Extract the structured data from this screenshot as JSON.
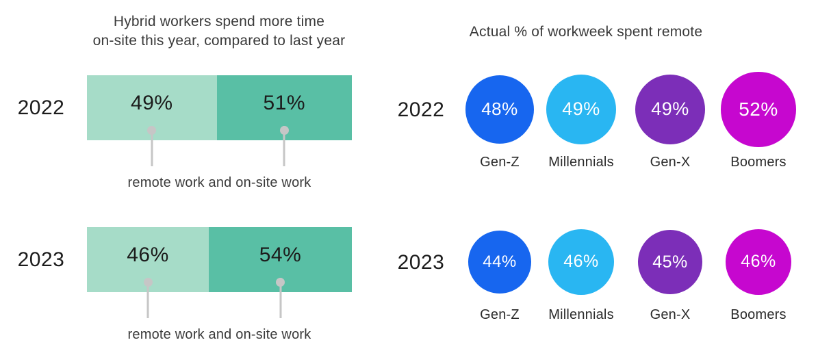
{
  "colors": {
    "remote_segment": "#a6dcc8",
    "onsite_segment": "#59bfa5",
    "pin_gray": "#c6c6c6",
    "text_dark": "#1c1c1c",
    "text_gray": "#3a3a3a",
    "bubble_genz": "#1766ef",
    "bubble_millennials": "#29b6f2",
    "bubble_genx": "#7c2eb8",
    "bubble_boomers": "#c607cf"
  },
  "chart_data": [
    {
      "type": "bar",
      "subtype": "horizontal-stacked-100pct",
      "title_lines": [
        "Hybrid workers spend more time",
        "on-site this year, compared to last year"
      ],
      "title": "Hybrid workers spend more time on-site this year, compared to last year",
      "categories": [
        "2022",
        "2023"
      ],
      "series": [
        {
          "name": "remote work",
          "values": [
            49,
            46
          ],
          "labels": [
            "49%",
            "46%"
          ],
          "color": "#a6dcc8"
        },
        {
          "name": "on-site work",
          "values": [
            51,
            54
          ],
          "labels": [
            "51%",
            "54%"
          ],
          "color": "#59bfa5"
        }
      ],
      "annotation": "remote work and on-site work",
      "value_suffix": "%",
      "xlim": [
        0,
        100
      ],
      "grid": false,
      "legend": "pin-callouts-below-each-bar"
    },
    {
      "type": "bubble",
      "title": "Actual % of workweek spent remote",
      "categories": [
        "Gen-Z",
        "Millennials",
        "Gen-X",
        "Boomers"
      ],
      "category_colors": [
        "#1766ef",
        "#29b6f2",
        "#7c2eb8",
        "#c607cf"
      ],
      "series": [
        {
          "name": "2022",
          "values": [
            48,
            49,
            49,
            52
          ],
          "labels": [
            "48%",
            "49%",
            "49%",
            "52%"
          ]
        },
        {
          "name": "2023",
          "values": [
            44,
            46,
            45,
            46
          ],
          "labels": [
            "44%",
            "46%",
            "45%",
            "46%"
          ]
        }
      ],
      "value_suffix": "%",
      "size_encoding": "bubble diameter proportional to value",
      "grid": false,
      "legend": "category labels below bubbles, year labels at left"
    }
  ]
}
